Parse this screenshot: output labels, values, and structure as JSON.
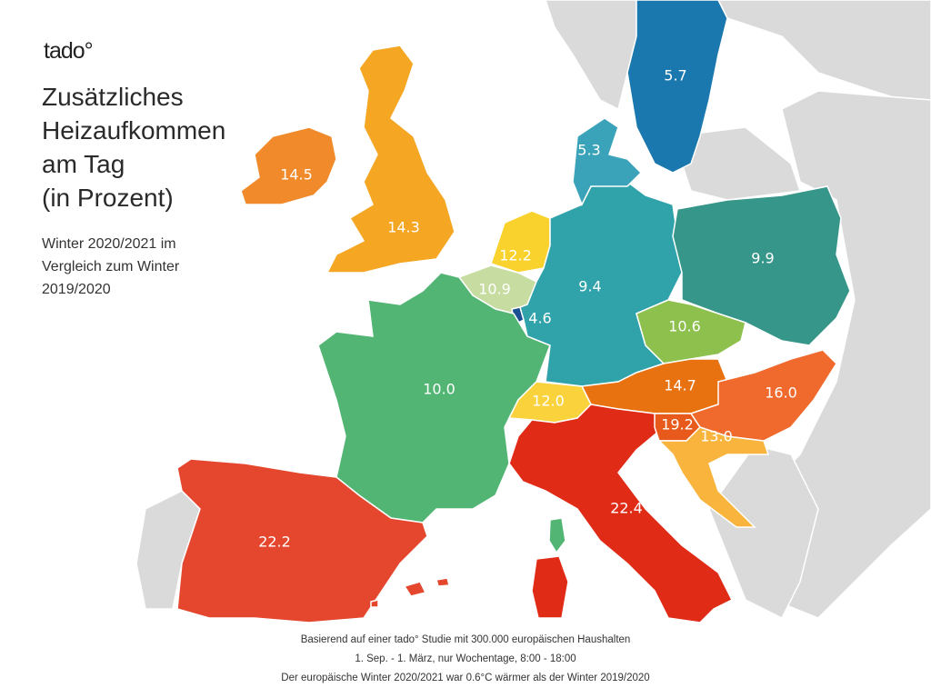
{
  "brand": {
    "logo": "tado°"
  },
  "header": {
    "title_lines": [
      "Zusätzliches",
      "Heizaufkommen",
      "am Tag",
      "(in Prozent)"
    ],
    "subtitle_lines": [
      "Winter 2020/2021 im",
      "Vergleich zum Winter",
      "2019/2020"
    ]
  },
  "map": {
    "background_color": "#dadada",
    "regions": [
      {
        "id": "ireland",
        "value": "14.5",
        "color": "#f08a2a"
      },
      {
        "id": "united-kingdom",
        "value": "14.3",
        "color": "#f5a623"
      },
      {
        "id": "netherlands",
        "value": "12.2",
        "color": "#f9d22e"
      },
      {
        "id": "belgium",
        "value": "10.9",
        "color": "#c7dca0"
      },
      {
        "id": "luxembourg",
        "value": "4.6",
        "color": "#1b4f92"
      },
      {
        "id": "france",
        "value": "10.0",
        "color": "#52b574"
      },
      {
        "id": "spain",
        "value": "22.2",
        "color": "#e4472e"
      },
      {
        "id": "germany",
        "value": "9.4",
        "color": "#2fa2aa"
      },
      {
        "id": "denmark",
        "value": "5.3",
        "color": "#3aa3ba"
      },
      {
        "id": "sweden",
        "value": "5.7",
        "color": "#1a78ae"
      },
      {
        "id": "poland",
        "value": "9.9",
        "color": "#37968a"
      },
      {
        "id": "czechia",
        "value": "10.6",
        "color": "#8dc04c"
      },
      {
        "id": "austria",
        "value": "14.7",
        "color": "#e8720f"
      },
      {
        "id": "switzerland",
        "value": "12.0",
        "color": "#fad23c"
      },
      {
        "id": "italy",
        "value": "22.4",
        "color": "#e02b17"
      },
      {
        "id": "slovenia",
        "value": "19.2",
        "color": "#e85a1c"
      },
      {
        "id": "croatia",
        "value": "13.0",
        "color": "#f8b43c"
      },
      {
        "id": "hungary",
        "value": "16.0",
        "color": "#ef6a2c"
      }
    ]
  },
  "footer": {
    "lines": [
      "Basierend auf einer tado° Studie mit 300.000 europäischen Haushalten",
      "1. Sep. - 1. März, nur Wochentage, 8:00 - 18:00",
      "Der europäische Winter 2020/2021 war 0.6°C wärmer als der Winter 2019/2020"
    ]
  }
}
